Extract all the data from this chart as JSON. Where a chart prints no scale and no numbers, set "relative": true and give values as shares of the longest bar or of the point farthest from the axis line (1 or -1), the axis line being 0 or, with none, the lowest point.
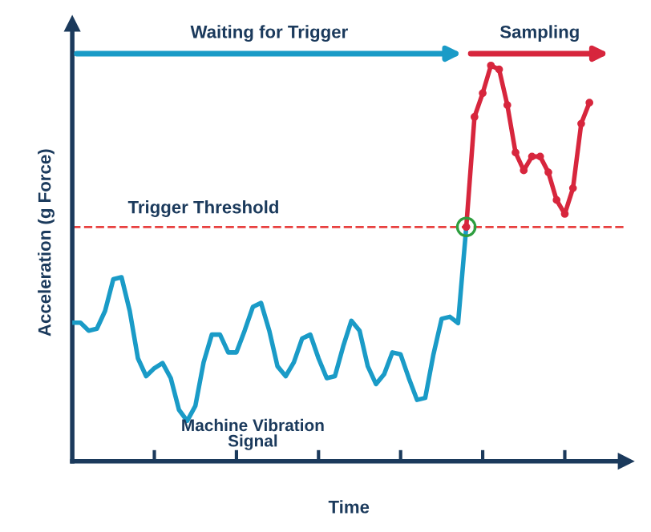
{
  "chart_data": {
    "type": "line",
    "relative": true,
    "xlabel": "Time",
    "ylabel": "Acceleration (g Force)",
    "categories": [
      null,
      null,
      null,
      null,
      null,
      null,
      null,
      null,
      null,
      null,
      null,
      null,
      null,
      null,
      null,
      null,
      null,
      null,
      null,
      null,
      null,
      null,
      null,
      null,
      null,
      null,
      null,
      null,
      null,
      null,
      null,
      null,
      null,
      null,
      null,
      null,
      null,
      null,
      null,
      null,
      null,
      null,
      null,
      null,
      null,
      null,
      null,
      null,
      null,
      null,
      null,
      null,
      null,
      null,
      null,
      null,
      null,
      null,
      null,
      null,
      null,
      null,
      null,
      null
    ],
    "series": [
      {
        "name": "Machine Vibration\nSignal",
        "color": "#1a9bc7",
        "marker": "none",
        "values": [
          0.35,
          0.35,
          0.33,
          0.335,
          0.38,
          0.46,
          0.465,
          0.38,
          0.26,
          0.215,
          0.235,
          0.248,
          0.21,
          0.13,
          0.102,
          0.14,
          0.25,
          0.32,
          0.32,
          0.275,
          0.275,
          0.33,
          0.39,
          0.4,
          0.33,
          0.24,
          0.215,
          0.25,
          0.31,
          0.32,
          0.26,
          0.21,
          0.215,
          0.29,
          0.355,
          0.33,
          0.24,
          0.195,
          0.22,
          0.275,
          0.27,
          0.21,
          0.155,
          0.16,
          0.27,
          0.36,
          0.365,
          0.349,
          0.592,
          null,
          null,
          null,
          null,
          null,
          null,
          null,
          null,
          null,
          null,
          null,
          null,
          null,
          null,
          null
        ]
      },
      {
        "color": "#d7263d",
        "marker": "circle",
        "values": [
          null,
          null,
          null,
          null,
          null,
          null,
          null,
          null,
          null,
          null,
          null,
          null,
          null,
          null,
          null,
          null,
          null,
          null,
          null,
          null,
          null,
          null,
          null,
          null,
          null,
          null,
          null,
          null,
          null,
          null,
          null,
          null,
          null,
          null,
          null,
          null,
          null,
          null,
          null,
          null,
          null,
          null,
          null,
          null,
          null,
          null,
          null,
          null,
          0.592,
          0.87,
          0.93,
          1.0,
          0.99,
          0.9,
          0.78,
          0.735,
          0.77,
          0.77,
          0.73,
          0.66,
          0.625,
          0.69,
          0.853,
          0.906
        ]
      }
    ],
    "ref_lines": [
      {
        "axis": "y",
        "value": 0.592,
        "label": "Trigger Threshold",
        "color": "#e8403f",
        "line_style": "dashed"
      }
    ],
    "annotations": [
      "Waiting for Trigger",
      "Sampling"
    ],
    "grid": false,
    "legend": false
  }
}
